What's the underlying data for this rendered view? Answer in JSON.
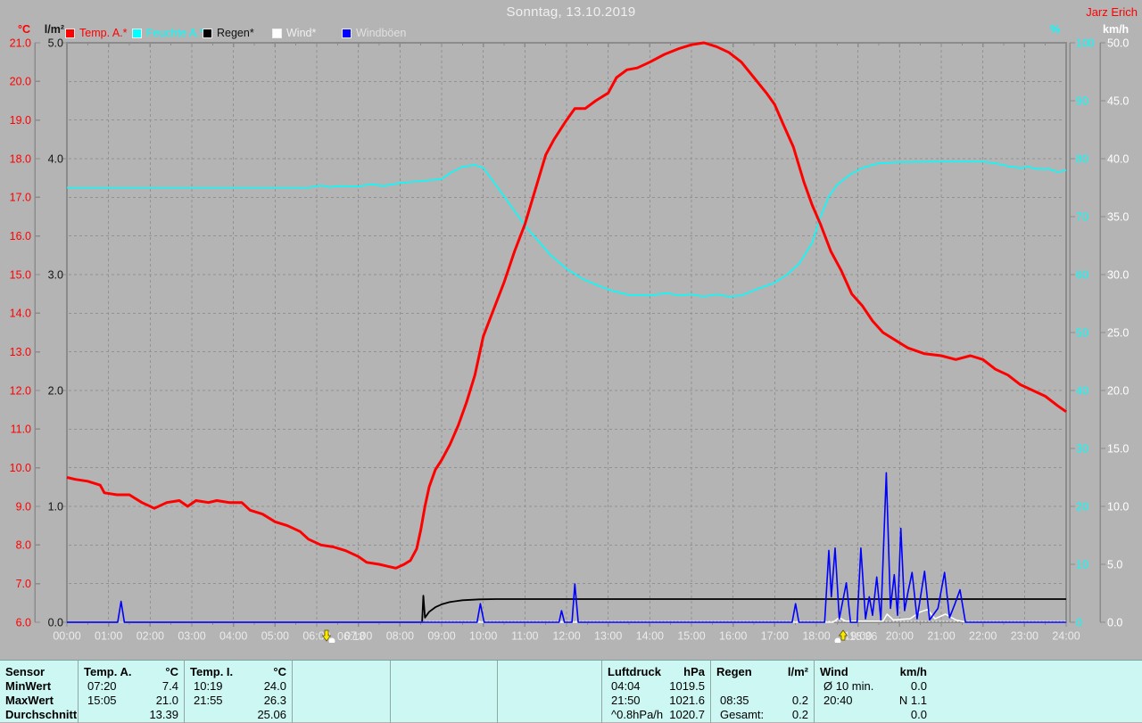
{
  "header": {
    "title": "Sonntag, 13.10.2019",
    "watermark": "Jarz Erich"
  },
  "legend": [
    {
      "label": "Temp. A.*",
      "swatch": "#ff0000",
      "text_color": "#ff0000"
    },
    {
      "label": "Feuchte A.*",
      "swatch": "#00ffff",
      "text_color": "#00ffff"
    },
    {
      "label": "Regen*",
      "swatch": "#000000",
      "text_color": "#111111"
    },
    {
      "label": "Wind*",
      "swatch": "#ffffff",
      "text_color": "#f0f0f0"
    },
    {
      "label": "Windböen",
      "swatch": "#0000ff",
      "text_color": "#e0e0e0"
    }
  ],
  "chart_data": {
    "type": "line",
    "title": "Sonntag, 13.10.2019",
    "grid": true,
    "x_axis": {
      "min_hour": 0,
      "max_hour": 24,
      "tick_labels": [
        "00:00",
        "01:00",
        "02:00",
        "03:00",
        "04:00",
        "05:00",
        "06:00",
        "07:00",
        "08:00",
        "09:00",
        "10:00",
        "11:00",
        "12:00",
        "13:00",
        "14:00",
        "15:00",
        "16:00",
        "17:00",
        "18:00",
        "19:00",
        "20:00",
        "21:00",
        "22:00",
        "23:00",
        "24:00"
      ]
    },
    "axes": {
      "temp": {
        "unit": "°C",
        "color": "#ff0000",
        "min": 6,
        "max": 21,
        "ticks": [
          "21.0",
          "20.0",
          "19.0",
          "18.0",
          "17.0",
          "16.0",
          "15.0",
          "14.0",
          "13.0",
          "12.0",
          "11.0",
          "10.0",
          "9.0",
          "8.0",
          "7.0",
          "6.0"
        ]
      },
      "rain": {
        "unit": "l/m²",
        "color": "#141414",
        "min": 0,
        "max": 5,
        "ticks": [
          "5.0",
          "4.0",
          "3.0",
          "2.0",
          "1.0",
          "0.0"
        ]
      },
      "humidity": {
        "unit": "%",
        "color": "#00ffff",
        "min": 0,
        "max": 100,
        "ticks": [
          "100",
          "90",
          "80",
          "70",
          "60",
          "50",
          "40",
          "30",
          "20",
          "10",
          "0"
        ]
      },
      "wind": {
        "unit": "km/h",
        "color": "#ffffff",
        "min": 0,
        "max": 50,
        "ticks": [
          "50.0",
          "45.0",
          "40.0",
          "35.0",
          "30.0",
          "25.0",
          "20.0",
          "15.0",
          "10.0",
          "5.0",
          "0.0"
        ]
      }
    },
    "markers": {
      "sunrise": {
        "label": "06:18",
        "hour": 6.3
      },
      "sunset": {
        "label": "18:36",
        "hour": 18.6
      }
    },
    "series": [
      {
        "name": "Regen",
        "axis": "rain",
        "color": "#000000",
        "points": [
          [
            0,
            0
          ],
          [
            8.53,
            0
          ],
          [
            8.56,
            0.23
          ],
          [
            8.6,
            0.04
          ],
          [
            8.7,
            0.09
          ],
          [
            8.85,
            0.13
          ],
          [
            9.0,
            0.155
          ],
          [
            9.2,
            0.175
          ],
          [
            9.5,
            0.19
          ],
          [
            9.9,
            0.198
          ],
          [
            10.3,
            0.2
          ],
          [
            24,
            0.2
          ]
        ]
      },
      {
        "name": "Wind",
        "axis": "wind",
        "color": "#ffffff",
        "points": [
          [
            0,
            0
          ],
          [
            18.4,
            0
          ],
          [
            18.55,
            0.4
          ],
          [
            18.7,
            0.1
          ],
          [
            19.6,
            0.1
          ],
          [
            19.7,
            0.7
          ],
          [
            19.85,
            0.2
          ],
          [
            20.25,
            0.3
          ],
          [
            20.5,
            0.9
          ],
          [
            20.67,
            1.1
          ],
          [
            20.85,
            0.3
          ],
          [
            21.1,
            0.7
          ],
          [
            21.35,
            0.2
          ],
          [
            21.6,
            0
          ],
          [
            24,
            0
          ]
        ]
      },
      {
        "name": "Windböen",
        "axis": "wind",
        "color": "#0000ff",
        "points": [
          [
            0,
            0
          ],
          [
            1.22,
            0
          ],
          [
            1.3,
            1.8
          ],
          [
            1.38,
            0
          ],
          [
            9.85,
            0
          ],
          [
            9.93,
            1.6
          ],
          [
            10.02,
            0
          ],
          [
            11.82,
            0
          ],
          [
            11.88,
            1.0
          ],
          [
            11.95,
            0
          ],
          [
            12.13,
            0
          ],
          [
            12.2,
            3.3
          ],
          [
            12.28,
            0
          ],
          [
            17.42,
            0
          ],
          [
            17.5,
            1.6
          ],
          [
            17.58,
            0
          ],
          [
            18.2,
            0
          ],
          [
            18.3,
            6.2
          ],
          [
            18.36,
            2.2
          ],
          [
            18.45,
            6.4
          ],
          [
            18.55,
            0.3
          ],
          [
            18.72,
            3.4
          ],
          [
            18.82,
            0
          ],
          [
            18.98,
            0
          ],
          [
            19.07,
            6.4
          ],
          [
            19.18,
            0.3
          ],
          [
            19.27,
            2.2
          ],
          [
            19.35,
            0.6
          ],
          [
            19.45,
            3.9
          ],
          [
            19.55,
            0.2
          ],
          [
            19.68,
            12.9
          ],
          [
            19.78,
            1.2
          ],
          [
            19.87,
            4.1
          ],
          [
            19.95,
            0.6
          ],
          [
            20.03,
            8.1
          ],
          [
            20.12,
            1.0
          ],
          [
            20.2,
            2.6
          ],
          [
            20.3,
            4.3
          ],
          [
            20.42,
            0.3
          ],
          [
            20.6,
            4.4
          ],
          [
            20.72,
            0.2
          ],
          [
            20.92,
            1.2
          ],
          [
            21.08,
            4.3
          ],
          [
            21.2,
            0.4
          ],
          [
            21.33,
            1.6
          ],
          [
            21.45,
            2.8
          ],
          [
            21.58,
            0
          ],
          [
            24,
            0
          ]
        ]
      },
      {
        "name": "Feuchte A.",
        "axis": "humidity",
        "color": "#00ffff",
        "points": [
          [
            0,
            75
          ],
          [
            1,
            75
          ],
          [
            2,
            75
          ],
          [
            3,
            75
          ],
          [
            4,
            75
          ],
          [
            5,
            75
          ],
          [
            5.8,
            75
          ],
          [
            6.1,
            75.4
          ],
          [
            6.3,
            75.1
          ],
          [
            6.6,
            75.3
          ],
          [
            7.0,
            75.2
          ],
          [
            7.3,
            75.6
          ],
          [
            7.6,
            75.3
          ],
          [
            8.0,
            75.8
          ],
          [
            8.3,
            76.0
          ],
          [
            8.6,
            76.2
          ],
          [
            9.0,
            76.5
          ],
          [
            9.2,
            77.5
          ],
          [
            9.5,
            78.6
          ],
          [
            9.8,
            78.9
          ],
          [
            10.0,
            78.4
          ],
          [
            10.2,
            76.5
          ],
          [
            10.4,
            74.5
          ],
          [
            10.6,
            72.5
          ],
          [
            10.8,
            70.5
          ],
          [
            11.0,
            68.5
          ],
          [
            11.3,
            66.0
          ],
          [
            11.6,
            63.5
          ],
          [
            12.0,
            61.0
          ],
          [
            12.4,
            59.2
          ],
          [
            12.8,
            58.0
          ],
          [
            13.1,
            57.2
          ],
          [
            13.5,
            56.5
          ],
          [
            14.0,
            56.4
          ],
          [
            14.4,
            56.8
          ],
          [
            14.7,
            56.4
          ],
          [
            15.0,
            56.6
          ],
          [
            15.3,
            56.2
          ],
          [
            15.6,
            56.6
          ],
          [
            15.9,
            56.2
          ],
          [
            16.2,
            56.4
          ],
          [
            16.5,
            57.3
          ],
          [
            17.0,
            58.6
          ],
          [
            17.3,
            60.0
          ],
          [
            17.6,
            62.0
          ],
          [
            17.9,
            65.5
          ],
          [
            18.1,
            70.0
          ],
          [
            18.3,
            73.5
          ],
          [
            18.5,
            75.5
          ],
          [
            18.8,
            77.2
          ],
          [
            19.1,
            78.4
          ],
          [
            19.5,
            79.2
          ],
          [
            20.0,
            79.4
          ],
          [
            21.0,
            79.5
          ],
          [
            22.0,
            79.5
          ],
          [
            22.3,
            79.2
          ],
          [
            22.6,
            78.7
          ],
          [
            22.9,
            78.4
          ],
          [
            23.1,
            78.6
          ],
          [
            23.3,
            78.2
          ],
          [
            23.6,
            78.2
          ],
          [
            23.8,
            77.7
          ],
          [
            24.0,
            78.0
          ]
        ]
      },
      {
        "name": "Temp. A.",
        "axis": "temp",
        "color": "#ff0000",
        "points": [
          [
            0,
            9.75
          ],
          [
            0.2,
            9.7
          ],
          [
            0.5,
            9.65
          ],
          [
            0.8,
            9.55
          ],
          [
            0.9,
            9.35
          ],
          [
            1.2,
            9.3
          ],
          [
            1.5,
            9.3
          ],
          [
            1.8,
            9.1
          ],
          [
            2.1,
            8.95
          ],
          [
            2.4,
            9.1
          ],
          [
            2.7,
            9.15
          ],
          [
            2.9,
            9.0
          ],
          [
            3.1,
            9.15
          ],
          [
            3.4,
            9.1
          ],
          [
            3.6,
            9.15
          ],
          [
            3.9,
            9.1
          ],
          [
            4.2,
            9.1
          ],
          [
            4.4,
            8.9
          ],
          [
            4.7,
            8.8
          ],
          [
            5.0,
            8.6
          ],
          [
            5.3,
            8.5
          ],
          [
            5.6,
            8.35
          ],
          [
            5.8,
            8.15
          ],
          [
            6.1,
            8.0
          ],
          [
            6.4,
            7.95
          ],
          [
            6.7,
            7.85
          ],
          [
            7.0,
            7.7
          ],
          [
            7.2,
            7.55
          ],
          [
            7.5,
            7.5
          ],
          [
            7.7,
            7.45
          ],
          [
            7.9,
            7.4
          ],
          [
            8.1,
            7.5
          ],
          [
            8.25,
            7.6
          ],
          [
            8.4,
            7.9
          ],
          [
            8.5,
            8.4
          ],
          [
            8.6,
            9.0
          ],
          [
            8.7,
            9.5
          ],
          [
            8.85,
            9.95
          ],
          [
            9.0,
            10.2
          ],
          [
            9.2,
            10.6
          ],
          [
            9.4,
            11.1
          ],
          [
            9.6,
            11.7
          ],
          [
            9.8,
            12.4
          ],
          [
            10.0,
            13.4
          ],
          [
            10.25,
            14.1
          ],
          [
            10.5,
            14.8
          ],
          [
            10.75,
            15.6
          ],
          [
            11.0,
            16.3
          ],
          [
            11.25,
            17.2
          ],
          [
            11.5,
            18.1
          ],
          [
            11.7,
            18.5
          ],
          [
            12.0,
            19.0
          ],
          [
            12.2,
            19.3
          ],
          [
            12.45,
            19.3
          ],
          [
            12.7,
            19.5
          ],
          [
            13.0,
            19.7
          ],
          [
            13.2,
            20.1
          ],
          [
            13.45,
            20.3
          ],
          [
            13.7,
            20.35
          ],
          [
            14.0,
            20.5
          ],
          [
            14.35,
            20.7
          ],
          [
            14.7,
            20.85
          ],
          [
            15.0,
            20.95
          ],
          [
            15.3,
            21.0
          ],
          [
            15.6,
            20.9
          ],
          [
            15.9,
            20.75
          ],
          [
            16.2,
            20.5
          ],
          [
            16.5,
            20.1
          ],
          [
            16.8,
            19.7
          ],
          [
            17.0,
            19.4
          ],
          [
            17.2,
            18.9
          ],
          [
            17.45,
            18.3
          ],
          [
            17.7,
            17.4
          ],
          [
            17.9,
            16.8
          ],
          [
            18.1,
            16.3
          ],
          [
            18.35,
            15.6
          ],
          [
            18.6,
            15.1
          ],
          [
            18.85,
            14.5
          ],
          [
            19.1,
            14.2
          ],
          [
            19.35,
            13.8
          ],
          [
            19.6,
            13.5
          ],
          [
            19.9,
            13.3
          ],
          [
            20.2,
            13.1
          ],
          [
            20.6,
            12.95
          ],
          [
            21.0,
            12.9
          ],
          [
            21.35,
            12.8
          ],
          [
            21.7,
            12.9
          ],
          [
            22.0,
            12.8
          ],
          [
            22.3,
            12.55
          ],
          [
            22.6,
            12.4
          ],
          [
            22.9,
            12.15
          ],
          [
            23.2,
            12.0
          ],
          [
            23.5,
            11.85
          ],
          [
            23.8,
            11.6
          ],
          [
            24.0,
            11.45
          ]
        ]
      }
    ]
  },
  "table": {
    "row_labels": [
      "Sensor",
      "MinWert",
      "MaxWert",
      "Durchschnitt"
    ],
    "columns": [
      {
        "name": "Temp. A.",
        "unit": "°C",
        "rows": [
          [
            "07:20",
            "7.4"
          ],
          [
            "15:05",
            "21.0"
          ],
          [
            "",
            "13.39"
          ]
        ]
      },
      {
        "name": "Temp. I.",
        "unit": "°C",
        "rows": [
          [
            "10:19",
            "24.0"
          ],
          [
            "21:55",
            "26.3"
          ],
          [
            "",
            "25.06"
          ]
        ]
      },
      {
        "name": "",
        "unit": "",
        "rows": [
          [
            "",
            ""
          ],
          [
            "",
            ""
          ],
          [
            "",
            ""
          ]
        ]
      },
      {
        "name": "",
        "unit": "",
        "rows": [
          [
            "",
            ""
          ],
          [
            "",
            ""
          ],
          [
            "",
            ""
          ]
        ]
      },
      {
        "name": "",
        "unit": "",
        "rows": [
          [
            "",
            ""
          ],
          [
            "",
            ""
          ],
          [
            "",
            ""
          ]
        ]
      },
      {
        "name": "Luftdruck",
        "unit": "hPa",
        "rows": [
          [
            "04:04",
            "1019.5"
          ],
          [
            "21:50",
            "1021.6"
          ],
          [
            "^0.8hPa/h",
            "1020.7"
          ]
        ]
      },
      {
        "name": "Regen",
        "unit": "l/m²",
        "rows": [
          [
            "",
            ""
          ],
          [
            "08:35",
            "0.2"
          ],
          [
            "Gesamt:",
            "0.2"
          ]
        ]
      },
      {
        "name": "Wind",
        "unit": "km/h",
        "rows": [
          [
            "Ø 10 min.",
            "0.0"
          ],
          [
            "20:40",
            "N 1.1"
          ],
          [
            "",
            "0.0"
          ]
        ]
      }
    ]
  },
  "colors": {
    "background": "#b4b4b4",
    "plot_border": "#8b8b8b",
    "grid": "#929292",
    "table_background": "#ccf7f3",
    "title_text": "#f0f0f0",
    "x_label_text": "#ebebeb"
  }
}
